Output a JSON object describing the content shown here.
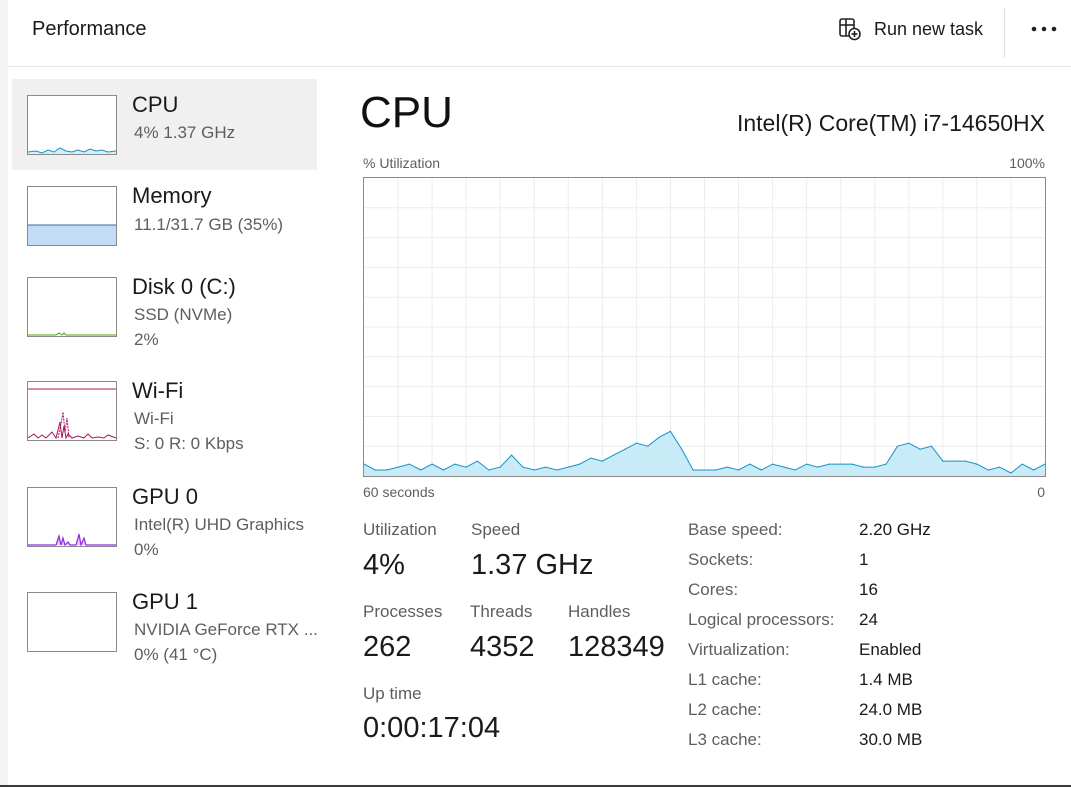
{
  "header": {
    "title": "Performance",
    "run_task_label": "Run new task",
    "more_label": "..."
  },
  "sidebar": {
    "items": [
      {
        "name": "CPU",
        "line1": "4%  1.37 GHz",
        "line2": "",
        "color": "#1793c7",
        "fill": "#d5eef8"
      },
      {
        "name": "Memory",
        "line1": "11.1/31.7 GB (35%)",
        "line2": "",
        "color": "#2f6eab",
        "fill": "#c3dcf6",
        "usage_fraction": 0.35
      },
      {
        "name": "Disk 0 (C:)",
        "line1": "SSD (NVMe)",
        "line2": "2%",
        "color": "#4da60c"
      },
      {
        "name": "Wi-Fi",
        "line1": "Wi-Fi",
        "line2": "S: 0  R: 0 Kbps",
        "color": "#a7155e"
      },
      {
        "name": "GPU 0",
        "line1": "Intel(R) UHD Graphics",
        "line2": "0%",
        "color": "#8a2be2"
      },
      {
        "name": "GPU 1",
        "line1": "NVIDIA GeForce RTX ...",
        "line2": "0%  (41 °C)",
        "color": "#8a2be2"
      }
    ]
  },
  "main": {
    "title": "CPU",
    "cpu_model": "Intel(R) Core(TM) i7-14650HX",
    "chart_y_label": "% Utilization",
    "chart_y_max": "100%",
    "chart_x_label": "60 seconds",
    "chart_x_min": "0",
    "stats": {
      "utilization_label": "Utilization",
      "utilization_value": "4%",
      "speed_label": "Speed",
      "speed_value": "1.37 GHz",
      "processes_label": "Processes",
      "processes_value": "262",
      "threads_label": "Threads",
      "threads_value": "4352",
      "handles_label": "Handles",
      "handles_value": "128349",
      "uptime_label": "Up time",
      "uptime_value": "0:00:17:04"
    },
    "specs": [
      {
        "label": "Base speed:",
        "value": "2.20 GHz"
      },
      {
        "label": "Sockets:",
        "value": "1"
      },
      {
        "label": "Cores:",
        "value": "16"
      },
      {
        "label": "Logical processors:",
        "value": "24"
      },
      {
        "label": "Virtualization:",
        "value": "Enabled"
      },
      {
        "label": "L1 cache:",
        "value": "1.4 MB"
      },
      {
        "label": "L2 cache:",
        "value": "24.0 MB"
      },
      {
        "label": "L3 cache:",
        "value": "30.0 MB"
      }
    ]
  },
  "colors": {
    "cpu_line": "#1793c7",
    "cpu_fill": "#c9ebf7",
    "grid": "#e9eef2",
    "selected_bg": "#f0f0f0"
  },
  "chart_data": {
    "type": "area",
    "title": "",
    "ylabel": "% Utilization",
    "xlabel": "60 seconds",
    "ylim": [
      0,
      100
    ],
    "xlim": [
      60,
      0
    ],
    "x": [
      60,
      59,
      58,
      57,
      56,
      55,
      54,
      53,
      52,
      51,
      50,
      49,
      48,
      47,
      46,
      45,
      44,
      43,
      42,
      41,
      40,
      39,
      38,
      37,
      36,
      35,
      34,
      33,
      32,
      31,
      30,
      29,
      28,
      27,
      26,
      25,
      24,
      23,
      22,
      21,
      20,
      19,
      18,
      17,
      16,
      15,
      14,
      13,
      12,
      11,
      10,
      9,
      8,
      7,
      6,
      5,
      4,
      3,
      2,
      1,
      0
    ],
    "series": [
      {
        "values": [
          4,
          2,
          2,
          3,
          4,
          2,
          4,
          2,
          4,
          3,
          5,
          2,
          3,
          7,
          3,
          2,
          3,
          2,
          3,
          4,
          6,
          5,
          7,
          9,
          11,
          10,
          13,
          15,
          9,
          2,
          2,
          2,
          3,
          2,
          4,
          2,
          4,
          3,
          2,
          4,
          3,
          4,
          4,
          4,
          3,
          3,
          4,
          10,
          11,
          9,
          10,
          5,
          5,
          5,
          4,
          2,
          3,
          1,
          4,
          2,
          4
        ]
      }
    ],
    "grid": true
  }
}
